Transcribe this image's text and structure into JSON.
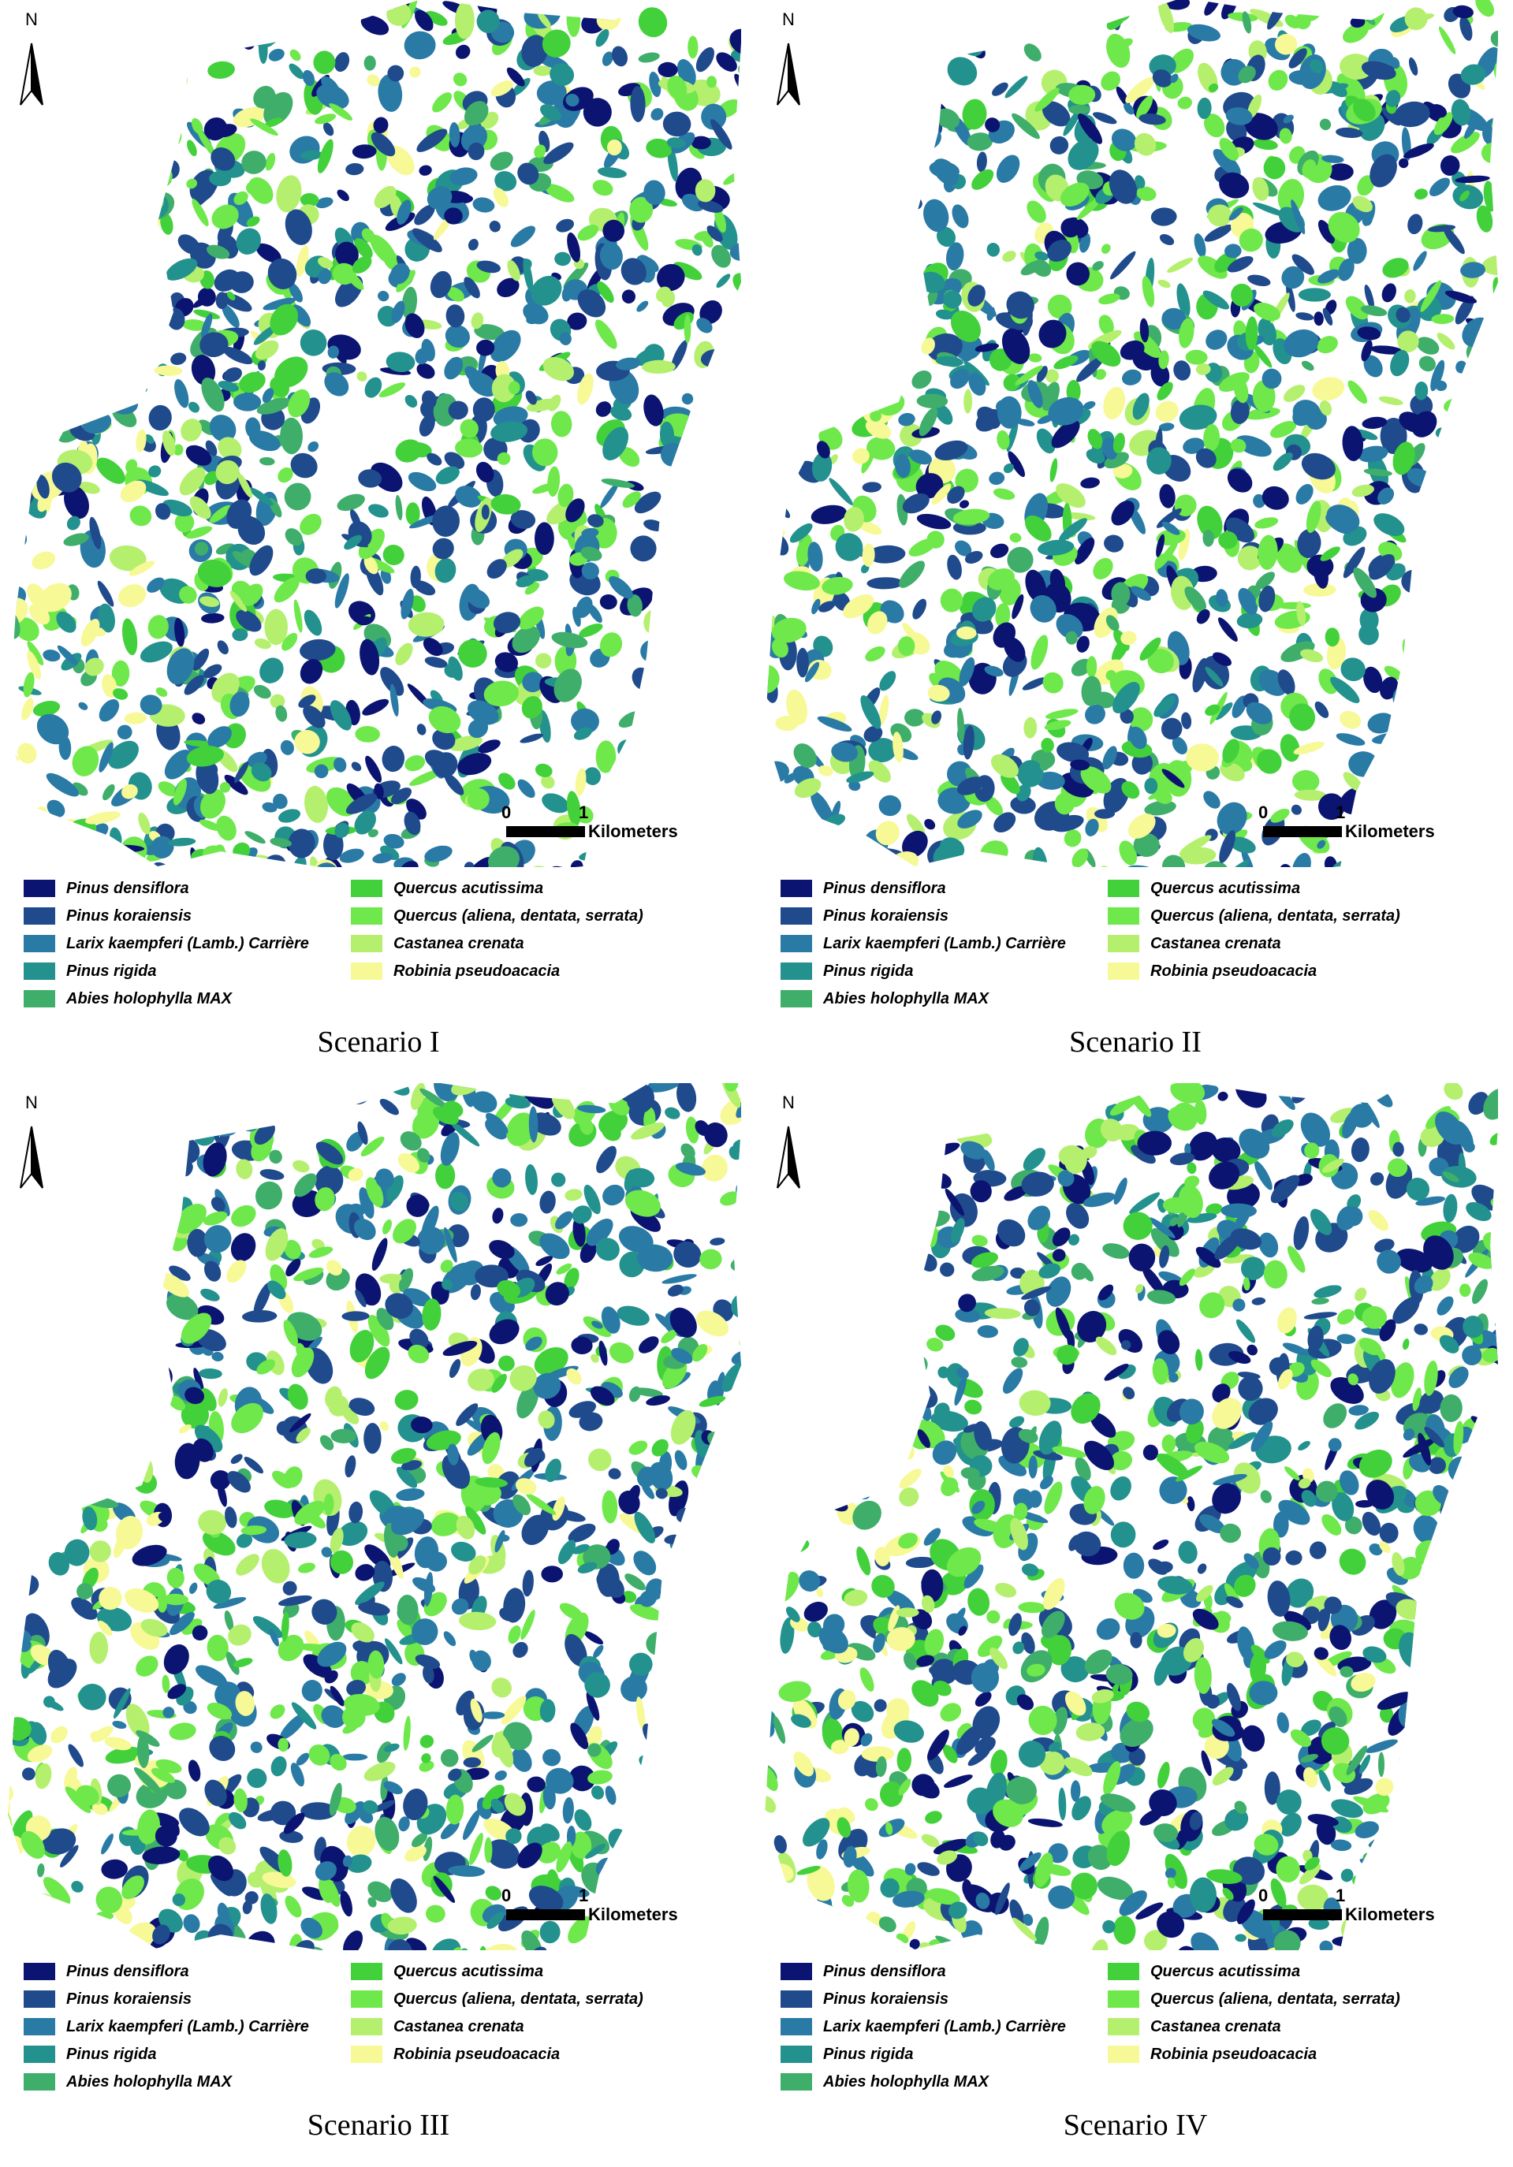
{
  "colors": {
    "pinus_densiflora": "#0b1470",
    "pinus_koraiensis": "#1f4a8c",
    "larix": "#2a7aa6",
    "pinus_rigida": "#23918e",
    "abies": "#3fae6a",
    "quercus_acutissima": "#43d13b",
    "quercus_aliena": "#6ee84a",
    "castanea": "#b5ef6e",
    "robinia": "#f7f996"
  },
  "north_label": "N",
  "scale": {
    "zero": "0",
    "one": "1",
    "unit": "Kilometers"
  },
  "legend": [
    {
      "label": "Pinus densiflora",
      "color_key": "pinus_densiflora"
    },
    {
      "label": "Pinus koraiensis",
      "color_key": "pinus_koraiensis"
    },
    {
      "label": "Larix kaempferi (Lamb.) Carrière",
      "color_key": "larix"
    },
    {
      "label": "Pinus rigida",
      "color_key": "pinus_rigida"
    },
    {
      "label": "Abies holophylla MAX",
      "color_key": "abies"
    },
    {
      "label": "Quercus acutissima",
      "color_key": "quercus_acutissima"
    },
    {
      "label": "Quercus (aliena, dentata, serrata)",
      "color_key": "quercus_aliena"
    },
    {
      "label": "Castanea crenata",
      "color_key": "castanea"
    },
    {
      "label": "Robinia pseudoacacia",
      "color_key": "robinia"
    }
  ],
  "panels": [
    {
      "caption": "Scenario I"
    },
    {
      "caption": "Scenario II"
    },
    {
      "caption": "Scenario III"
    },
    {
      "caption": "Scenario IV"
    }
  ]
}
